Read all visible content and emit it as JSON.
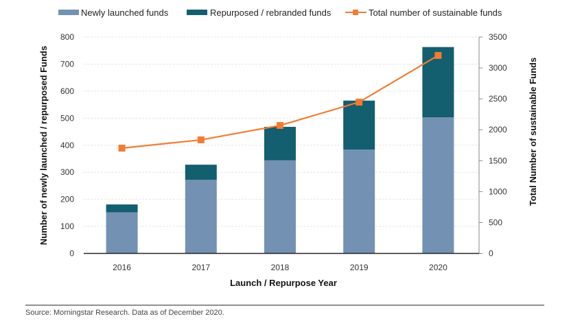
{
  "chart_data": {
    "type": "bar",
    "subtype": "stacked-bar-with-line-secondary-axis",
    "categories": [
      "2016",
      "2017",
      "2018",
      "2019",
      "2020"
    ],
    "series": [
      {
        "name": "Newly launched funds",
        "kind": "bar",
        "axis": "left",
        "color": "#7391b3",
        "values": [
          152,
          272,
          344,
          384,
          503
        ]
      },
      {
        "name": "Repurposed / rebranded funds",
        "kind": "bar",
        "axis": "left",
        "color": "#135e6f",
        "values": [
          29,
          56,
          124,
          181,
          260
        ]
      },
      {
        "name": "Total number of sustainable funds",
        "kind": "line",
        "axis": "right",
        "color": "#f07d32",
        "marker": "square",
        "values": [
          1703,
          1837,
          2070,
          2447,
          3202
        ]
      }
    ],
    "xlabel": "Launch / Repurpose Year",
    "ylabel": "Number of newly launched / repurposed Funds",
    "ylabel_right": "Total Number of sustainable Funds",
    "ylim": [
      0,
      800
    ],
    "ylim_right": [
      0,
      3500
    ],
    "yticks": [
      0,
      100,
      200,
      300,
      400,
      500,
      600,
      700,
      800
    ],
    "yticks_right": [
      0,
      500,
      1000,
      1500,
      2000,
      2500,
      3000,
      3500
    ],
    "grid": true,
    "legend_position": "top",
    "legend": [
      {
        "label": "Newly launched funds",
        "symbol": "bar"
      },
      {
        "label": "Repurposed / rebranded funds",
        "symbol": "bar"
      },
      {
        "label": "Total number of sustainable funds",
        "symbol": "line-square"
      }
    ],
    "title": ""
  },
  "footer": {
    "source": "Source: Morningstar Research. Data as of December 2020."
  }
}
